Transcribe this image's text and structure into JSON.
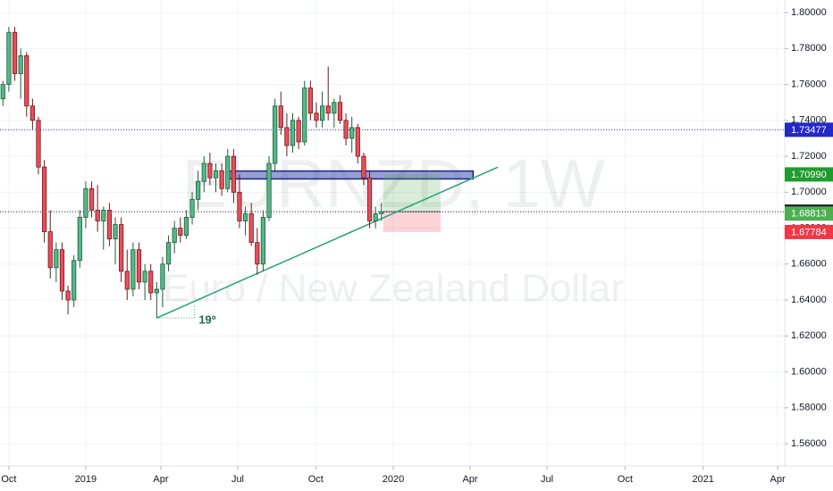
{
  "chart_data": {
    "type": "candlestick",
    "watermark_title": "EURNZD, 1W",
    "watermark_subtitle": "Euro / New Zealand Dollar",
    "up_color": "#53b987",
    "up_border": "#1f5b3a",
    "down_color": "#eb4d5c",
    "down_border": "#6b1c1c",
    "x": [
      -1,
      0,
      1,
      2,
      3,
      4,
      5,
      6,
      7,
      8,
      9,
      10,
      11,
      12,
      13,
      14,
      15,
      16,
      17,
      18,
      19,
      20,
      21,
      22,
      23,
      24,
      25,
      26,
      27,
      28,
      29,
      30,
      31,
      32,
      33,
      34,
      35,
      36,
      37,
      38,
      39,
      40,
      41,
      42,
      43,
      44,
      45,
      46,
      47,
      48,
      49,
      50,
      51,
      52,
      53,
      54,
      55,
      56,
      57,
      58,
      59,
      60,
      61,
      62,
      63
    ],
    "open": [
      1.752,
      1.76,
      1.789,
      1.766,
      1.776,
      1.748,
      1.74,
      1.714,
      1.678,
      1.658,
      1.668,
      1.645,
      1.64,
      1.662,
      1.686,
      1.702,
      1.69,
      1.684,
      1.69,
      1.674,
      1.682,
      1.656,
      1.646,
      1.668,
      1.65,
      1.656,
      1.644,
      1.646,
      1.66,
      1.672,
      1.68,
      1.676,
      1.686,
      1.696,
      1.706,
      1.716,
      1.708,
      1.712,
      1.702,
      1.72,
      1.7,
      1.684,
      1.688,
      1.672,
      1.66,
      1.686,
      1.716,
      1.748,
      1.736,
      1.726,
      1.74,
      1.728,
      1.758,
      1.744,
      1.74,
      1.748,
      1.744,
      1.75,
      1.74,
      1.73,
      1.736,
      1.72,
      1.708,
      1.684,
      1.688
    ],
    "high": [
      1.762,
      1.792,
      1.792,
      1.78,
      1.778,
      1.752,
      1.742,
      1.718,
      1.69,
      1.672,
      1.672,
      1.648,
      1.665,
      1.69,
      1.706,
      1.706,
      1.704,
      1.692,
      1.694,
      1.686,
      1.686,
      1.668,
      1.672,
      1.672,
      1.66,
      1.66,
      1.65,
      1.664,
      1.676,
      1.684,
      1.686,
      1.69,
      1.7,
      1.712,
      1.72,
      1.722,
      1.716,
      1.716,
      1.724,
      1.724,
      1.71,
      1.692,
      1.694,
      1.68,
      1.69,
      1.72,
      1.752,
      1.756,
      1.744,
      1.744,
      1.742,
      1.762,
      1.762,
      1.75,
      1.756,
      1.77,
      1.752,
      1.754,
      1.744,
      1.742,
      1.738,
      1.722,
      1.712,
      1.692,
      1.694
    ],
    "low": [
      1.748,
      1.756,
      1.762,
      1.752,
      1.742,
      1.735,
      1.71,
      1.672,
      1.652,
      1.65,
      1.64,
      1.632,
      1.636,
      1.658,
      1.68,
      1.686,
      1.678,
      1.668,
      1.67,
      1.66,
      1.65,
      1.64,
      1.642,
      1.646,
      1.64,
      1.64,
      1.63,
      1.636,
      1.656,
      1.666,
      1.672,
      1.674,
      1.682,
      1.69,
      1.7,
      1.704,
      1.7,
      1.698,
      1.7,
      1.694,
      1.68,
      1.676,
      1.67,
      1.654,
      1.656,
      1.684,
      1.712,
      1.732,
      1.72,
      1.722,
      1.724,
      1.726,
      1.74,
      1.736,
      1.736,
      1.74,
      1.736,
      1.738,
      1.726,
      1.722,
      1.716,
      1.704,
      1.68,
      1.68,
      1.684
    ],
    "close": [
      1.76,
      1.789,
      1.766,
      1.776,
      1.748,
      1.74,
      1.714,
      1.678,
      1.658,
      1.668,
      1.645,
      1.64,
      1.662,
      1.686,
      1.702,
      1.69,
      1.684,
      1.69,
      1.674,
      1.682,
      1.656,
      1.646,
      1.668,
      1.65,
      1.656,
      1.644,
      1.646,
      1.66,
      1.672,
      1.68,
      1.676,
      1.686,
      1.696,
      1.706,
      1.716,
      1.708,
      1.712,
      1.702,
      1.72,
      1.7,
      1.684,
      1.688,
      1.672,
      1.66,
      1.686,
      1.716,
      1.748,
      1.736,
      1.726,
      1.74,
      1.728,
      1.758,
      1.744,
      1.74,
      1.748,
      1.744,
      1.75,
      1.74,
      1.73,
      1.736,
      1.72,
      1.708,
      1.684,
      1.688,
      1.68916
    ],
    "xlim": [
      -1.5,
      131.2
    ],
    "xticks": [
      {
        "value": 0,
        "label": "Oct"
      },
      {
        "value": 13,
        "label": "2019"
      },
      {
        "value": 25.7,
        "label": "Apr"
      },
      {
        "value": 38.7,
        "label": "Jul"
      },
      {
        "value": 51.9,
        "label": "Oct"
      },
      {
        "value": 65,
        "label": "2020"
      },
      {
        "value": 78,
        "label": "Apr"
      },
      {
        "value": 91,
        "label": "Jul"
      },
      {
        "value": 104.2,
        "label": "Oct"
      },
      {
        "value": 117.4,
        "label": "2021"
      },
      {
        "value": 130,
        "label": "Apr"
      }
    ],
    "ylim": [
      1.5476,
      1.807
    ],
    "yticks": [
      {
        "value": 1.56,
        "label": "1.56000"
      },
      {
        "value": 1.58,
        "label": "1.58000"
      },
      {
        "value": 1.6,
        "label": "1.60000"
      },
      {
        "value": 1.62,
        "label": "1.62000"
      },
      {
        "value": 1.64,
        "label": "1.64000"
      },
      {
        "value": 1.66,
        "label": "1.66000"
      },
      {
        "value": 1.68,
        "label": "1.68000"
      },
      {
        "value": 1.7,
        "label": "1.70000"
      },
      {
        "value": 1.72,
        "label": "1.72000"
      },
      {
        "value": 1.74,
        "label": "1.74000"
      },
      {
        "value": 1.76,
        "label": "1.76000"
      },
      {
        "value": 1.78,
        "label": "1.78000"
      },
      {
        "value": 1.8,
        "label": "1.80000"
      }
    ],
    "grid": true,
    "price_labels": [
      {
        "value": 1.73477,
        "color": "#2328c8",
        "line": true
      },
      {
        "value": 1.7099,
        "value_label": "1.70990",
        "color": "#1f9c2e",
        "line": false
      },
      {
        "value": 1.68916,
        "color": "#131722",
        "line": true
      },
      {
        "value": 1.68813,
        "color": "#4caf50",
        "line": false
      },
      {
        "value": 1.67784,
        "color": "#f23645",
        "line": false
      }
    ],
    "zone": {
      "x": [
        37.3,
        78.5
      ],
      "y": [
        1.7074,
        1.7118
      ],
      "color": "#3f51b5"
    },
    "position": {
      "x": [
        63.3,
        73
      ],
      "entry": 1.68916,
      "target": 1.7099,
      "stop": 1.67784
    },
    "trendline": {
      "x": [
        25,
        82.7
      ],
      "y": [
        1.63,
        1.714
      ],
      "color": "#26a27a"
    },
    "angle_label": "19º"
  }
}
